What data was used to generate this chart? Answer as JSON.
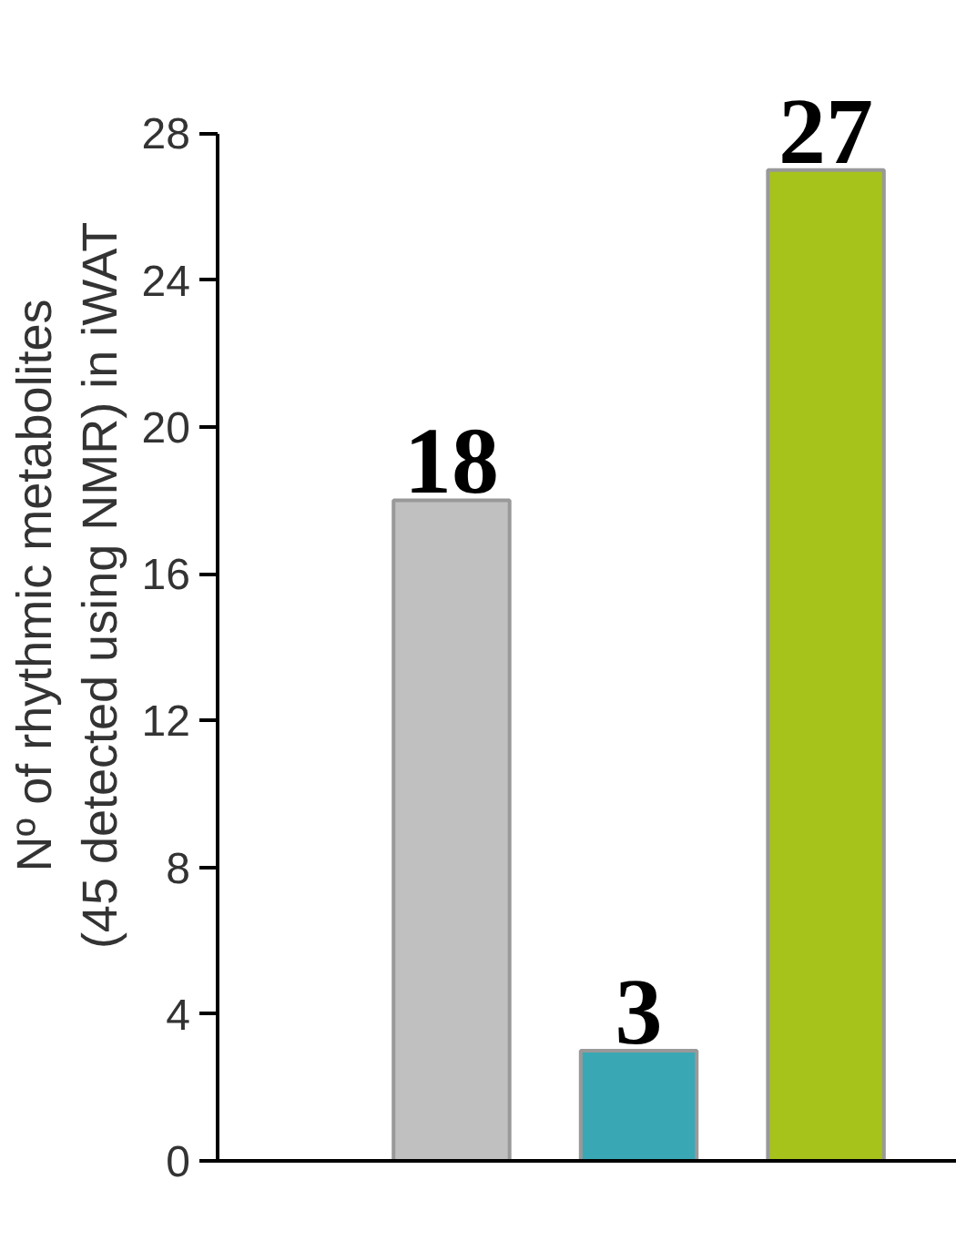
{
  "chart_data": {
    "type": "bar",
    "ylabel": "Nº of rhythmic metabolites\n(45 detected using NMR) in iWAT",
    "categories": [
      null,
      null,
      null
    ],
    "values": [
      18,
      3,
      27
    ],
    "colors": [
      "#c0c0c0",
      "#3aa8b4",
      "#a6c31c"
    ],
    "ylim": [
      0,
      28
    ],
    "yticks": [
      0,
      4,
      8,
      12,
      16,
      20,
      24,
      28
    ],
    "data_labels": true
  }
}
